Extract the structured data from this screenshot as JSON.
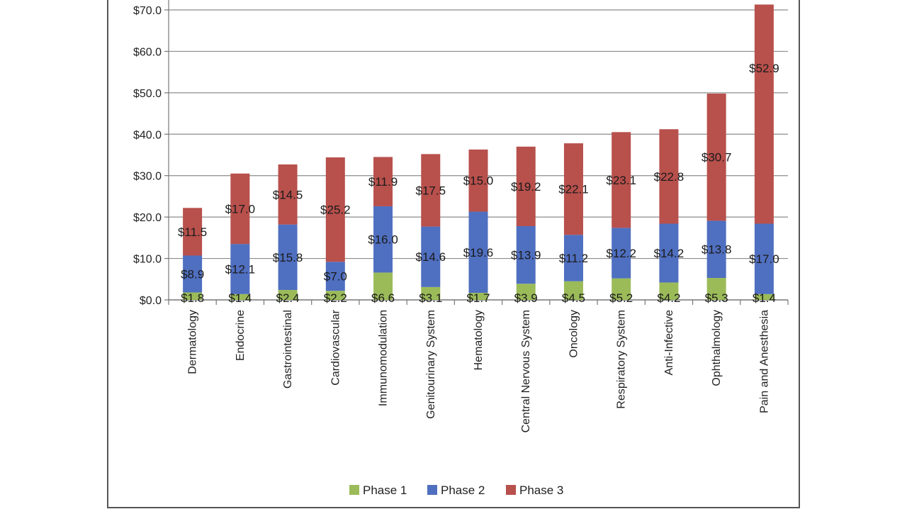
{
  "chart_data": {
    "type": "bar",
    "stacked": true,
    "categories": [
      "Dermatology",
      "Endocrine",
      "Gastrointestinal",
      "Cardiovascular",
      "Immunomodulation",
      "Genitourinary System",
      "Hematology",
      "Central Nervous System",
      "Oncology",
      "Respiratory System",
      "Anti-Infective",
      "Ophthalmology",
      "Pain and Anesthesia"
    ],
    "series": [
      {
        "name": "Phase 1",
        "color": "#9bbb59",
        "values": [
          1.8,
          1.4,
          2.4,
          2.2,
          6.6,
          3.1,
          1.7,
          3.9,
          4.5,
          5.2,
          4.2,
          5.3,
          1.4
        ],
        "labels": [
          "$1.8",
          "$1.4",
          "$2.4",
          "$2.2",
          "$6.6",
          "$3.1",
          "$1.7",
          "$3.9",
          "$4.5",
          "$5.2",
          "$4.2",
          "$5.3",
          "$1.4"
        ]
      },
      {
        "name": "Phase 2",
        "color": "#4f6fc0",
        "values": [
          8.9,
          12.1,
          15.8,
          7.0,
          16.0,
          14.6,
          19.6,
          13.9,
          11.2,
          12.2,
          14.2,
          13.8,
          17.0
        ],
        "labels": [
          "$8.9",
          "$12.1",
          "$15.8",
          "$7.0",
          "$16.0",
          "$14.6",
          "$19.6",
          "$13.9",
          "$11.2",
          "$12.2",
          "$14.2",
          "$13.8",
          "$17.0"
        ]
      },
      {
        "name": "Phase 3",
        "color": "#b8504c",
        "values": [
          11.5,
          17.0,
          14.5,
          25.2,
          11.9,
          17.5,
          15.0,
          19.2,
          22.1,
          23.1,
          22.8,
          30.7,
          52.9
        ],
        "labels": [
          "$11.5",
          "$17.0",
          "$14.5",
          "$25.2",
          "$11.9",
          "$17.5",
          "$15.0",
          "$19.2",
          "$22.1",
          "$23.1",
          "$22.8",
          "$30.7",
          "$52.9"
        ]
      }
    ],
    "y_ticks": [
      0,
      10,
      20,
      30,
      40,
      50,
      60,
      70
    ],
    "y_tick_labels": [
      "$0.0",
      "$10.0",
      "$20.0",
      "$30.0",
      "$40.0",
      "$50.0",
      "$60.0",
      "$70.0"
    ],
    "ylim": [
      0,
      70
    ],
    "grid": true,
    "legend_position": "bottom",
    "title": "",
    "xlabel": "",
    "ylabel": ""
  }
}
